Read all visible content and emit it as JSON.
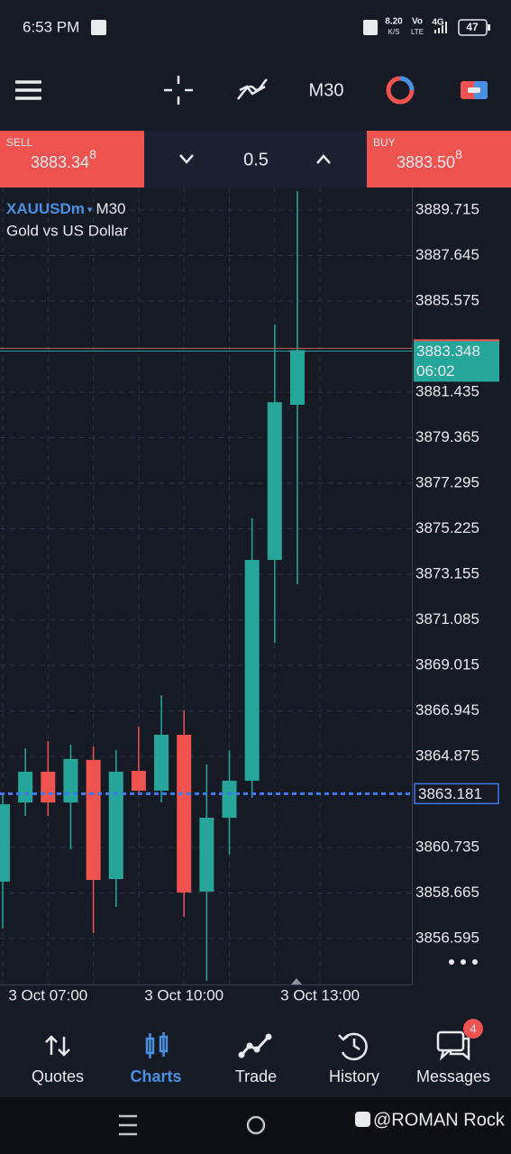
{
  "status_bar": {
    "time": "6:53 PM",
    "net_speed": "8.20",
    "net_unit": "K/S",
    "volte_top": "Vo",
    "volte_bottom": "LTE",
    "network": "4G",
    "battery": "47"
  },
  "toolbar": {
    "timeframe": "M30"
  },
  "trade_bar": {
    "sell_label": "SELL",
    "sell_price": "3883.34",
    "sell_pip": "8",
    "volume": "0.5",
    "buy_label": "BUY",
    "buy_price": "3883.50",
    "buy_pip": "8"
  },
  "chart_data": {
    "type": "candlestick",
    "title": "XAUUSDm",
    "timeframe": "M30",
    "subtitle": "Gold vs US Dollar",
    "categories": [
      null,
      null,
      "3 Oct 07:00",
      null,
      null,
      null,
      null,
      null,
      "3 Oct 10:00",
      null,
      null,
      null,
      null,
      null,
      "3 Oct 13:00"
    ],
    "open": [
      3859.18,
      3862.78,
      3864.18,
      3862.78,
      3864.72,
      3859.3,
      3864.22,
      3863.32,
      3865.86,
      3858.73,
      3862.09,
      3863.77,
      3873.81,
      3880.86,
      null
    ],
    "high": [
      3863.2,
      3865.24,
      3865.57,
      3865.41,
      3865.33,
      3865.16,
      3866.23,
      3867.66,
      3866.97,
      3864.51,
      3865.16,
      3875.7,
      3884.51,
      3890.58,
      null
    ],
    "low": [
      3857.05,
      3862.17,
      3862.17,
      3860.65,
      3856.84,
      3858.03,
      3863.19,
      3862.78,
      3857.58,
      3854.67,
      3860.41,
      3862.99,
      3870.04,
      3872.7,
      null
    ],
    "close": [
      3862.7,
      3864.18,
      3862.78,
      3864.76,
      3859.26,
      3864.18,
      3863.32,
      3865.86,
      3858.69,
      3862.09,
      3863.77,
      3873.81,
      3880.98,
      3883.348,
      null
    ],
    "up_color": "#26a69a",
    "down_color": "#ef5350",
    "ylim": [
      3854.505,
      3890.74
    ],
    "yticks": [
      3856.595,
      3858.665,
      3860.735,
      3864.875,
      3866.945,
      3869.015,
      3871.085,
      3873.155,
      3875.225,
      3877.295,
      3879.365,
      3881.435,
      3885.575,
      3887.645,
      3889.715
    ],
    "grid": true,
    "current_price": 3883.348,
    "countdown": "06:02",
    "order_line": 3863.181
  },
  "nav": {
    "items": [
      "Quotes",
      "Charts",
      "Trade",
      "History",
      "Messages"
    ],
    "active": 1,
    "badge": "4"
  },
  "watermark": "@ROMAN Rock"
}
